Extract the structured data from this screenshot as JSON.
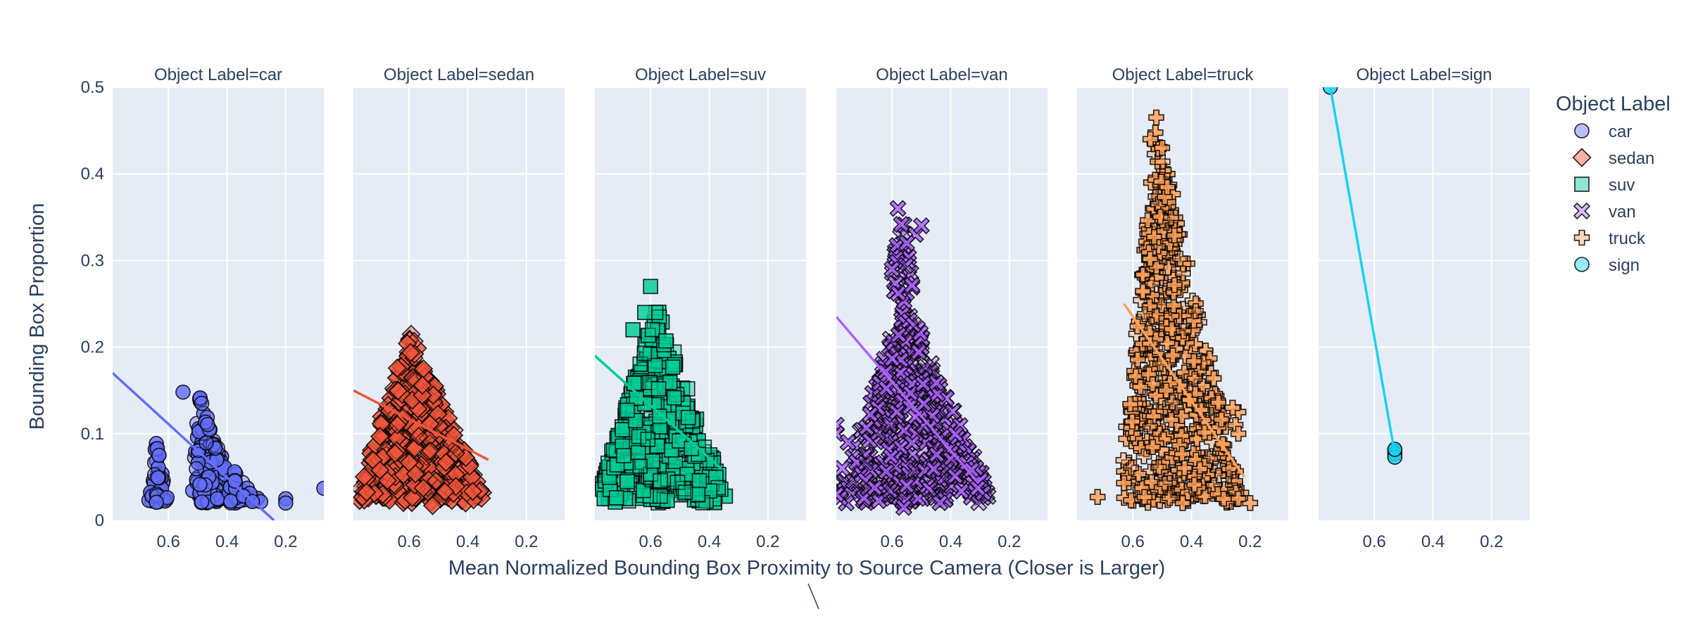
{
  "chart_data": {
    "type": "scatter",
    "xlabel": "Mean Normalized Bounding Box Proximity to Source Camera (Closer is Larger)",
    "ylabel": "Bounding Box Proportion",
    "x_reversed": true,
    "xlim": [
      0.79,
      0.07
    ],
    "ylim": [
      0,
      0.5
    ],
    "x_ticks": [
      0.6,
      0.4,
      0.2
    ],
    "y_ticks": [
      0,
      0.1,
      0.2,
      0.3,
      0.4,
      0.5
    ],
    "y_tick_labels": [
      "0",
      "0.1",
      "0.2",
      "0.3",
      "0.4",
      "0.5"
    ],
    "grid": true,
    "legend": {
      "title": "Object Label",
      "position": "right"
    },
    "panels": [
      {
        "title": "Object Label=car",
        "name": "car",
        "symbol": "circle",
        "color": "#636efa",
        "trendline": [
          [
            0.79,
            0.17
          ],
          [
            0.24,
            0.0
          ]
        ],
        "clusters": [
          {
            "x": [
              0.52,
              0.36
            ],
            "y": [
              0.02,
              0.15
            ],
            "apex_x": 0.5,
            "n": 130
          },
          {
            "x": [
              0.67,
              0.6
            ],
            "y": [
              0.02,
              0.095
            ],
            "apex_x": 0.64,
            "n": 40
          },
          {
            "x": [
              0.4,
              0.28
            ],
            "y": [
              0.02,
              0.06
            ],
            "apex_x": 0.38,
            "n": 40
          }
        ],
        "points": [
          [
            0.07,
            0.037
          ],
          [
            0.2,
            0.025
          ],
          [
            0.2,
            0.02
          ],
          [
            0.55,
            0.148
          ]
        ]
      },
      {
        "title": "Object Label=sedan",
        "name": "sedan",
        "symbol": "diamond",
        "color": "#ef553b",
        "trendline": [
          [
            0.79,
            0.15
          ],
          [
            0.33,
            0.07
          ]
        ],
        "clusters": [
          {
            "x": [
              0.79,
              0.33
            ],
            "y": [
              0.02,
              0.22
            ],
            "apex_x": 0.6,
            "n": 420
          }
        ],
        "points": [
          [
            0.52,
            0.017
          ]
        ]
      },
      {
        "title": "Object Label=suv",
        "name": "suv",
        "symbol": "square",
        "color": "#00cc96",
        "trendline": [
          [
            0.79,
            0.19
          ],
          [
            0.36,
            0.06
          ]
        ],
        "clusters": [
          {
            "x": [
              0.79,
              0.33
            ],
            "y": [
              0.02,
              0.25
            ],
            "apex_x": 0.58,
            "n": 420
          }
        ],
        "points": [
          [
            0.6,
            0.27
          ],
          [
            0.66,
            0.22
          ],
          [
            0.62,
            0.24
          ]
        ]
      },
      {
        "title": "Object Label=van",
        "name": "van",
        "symbol": "x",
        "color": "#ab63fa",
        "trendline": [
          [
            0.79,
            0.235
          ],
          [
            0.31,
            0.045
          ]
        ],
        "clusters": [
          {
            "x": [
              0.79,
              0.25
            ],
            "y": [
              0.02,
              0.26
            ],
            "apex_x": 0.56,
            "n": 420
          },
          {
            "x": [
              0.62,
              0.52
            ],
            "y": [
              0.26,
              0.36
            ],
            "apex_x": 0.56,
            "n": 25
          }
        ],
        "points": [
          [
            0.58,
            0.36
          ],
          [
            0.52,
            0.33
          ],
          [
            0.5,
            0.34
          ],
          [
            0.55,
            0.32
          ],
          [
            0.6,
            0.29
          ],
          [
            0.79,
            0.11
          ],
          [
            0.79,
            0.1
          ],
          [
            0.75,
            0.09
          ],
          [
            0.77,
            0.06
          ],
          [
            0.79,
            0.03
          ],
          [
            0.56,
            0.015
          ],
          [
            0.55,
            0.04
          ]
        ]
      },
      {
        "title": "Object Label=truck",
        "name": "truck",
        "symbol": "cross",
        "color": "#ffa15a",
        "trendline": [
          [
            0.63,
            0.25
          ],
          [
            0.22,
            0.05
          ]
        ],
        "clusters": [
          {
            "x": [
              0.65,
              0.22
            ],
            "y": [
              0.02,
              0.46
            ],
            "apex_x": 0.52,
            "n": 500
          }
        ],
        "points": [
          [
            0.52,
            0.465
          ],
          [
            0.54,
            0.44
          ],
          [
            0.5,
            0.43
          ],
          [
            0.72,
            0.027
          ],
          [
            0.63,
            0.043
          ],
          [
            0.43,
            0.02
          ],
          [
            0.24,
            0.125
          ],
          [
            0.25,
            0.11
          ],
          [
            0.24,
            0.1
          ],
          [
            0.26,
            0.13
          ],
          [
            0.2,
            0.02
          ],
          [
            0.24,
            0.025
          ],
          [
            0.29,
            0.025
          ],
          [
            0.56,
            0.027
          ]
        ]
      },
      {
        "title": "Object Label=sign",
        "name": "sign",
        "symbol": "circle",
        "color": "#19d3f3",
        "trendline": [
          [
            0.75,
            0.5
          ],
          [
            0.53,
            0.077
          ]
        ],
        "clusters": [],
        "points": [
          [
            0.75,
            0.5
          ],
          [
            0.53,
            0.08
          ],
          [
            0.53,
            0.077
          ],
          [
            0.53,
            0.073
          ],
          [
            0.53,
            0.082
          ]
        ]
      }
    ]
  }
}
